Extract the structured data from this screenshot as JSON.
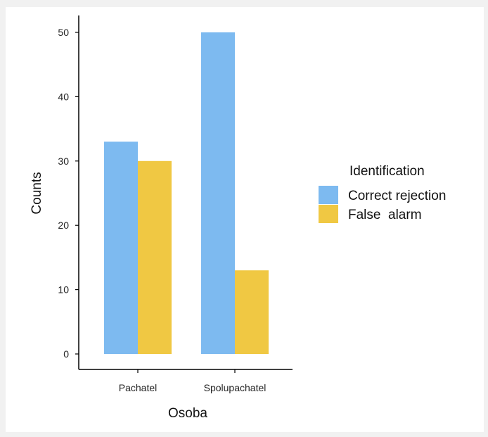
{
  "chart_data": {
    "type": "bar",
    "categories": [
      "Pachatel",
      "Spolupachatel"
    ],
    "series": [
      {
        "name": "Correct rejection",
        "color": "#7dbaf0",
        "values": [
          33,
          50
        ]
      },
      {
        "name": "False  alarm",
        "color": "#f0c843",
        "values": [
          30,
          13
        ]
      }
    ],
    "xlabel": "Osoba",
    "ylabel": "Counts",
    "ylim": [
      0,
      50
    ],
    "yticks": [
      0,
      10,
      20,
      30,
      40,
      50
    ],
    "legend_title": "Identification",
    "legend_position": "right",
    "grid": false
  }
}
